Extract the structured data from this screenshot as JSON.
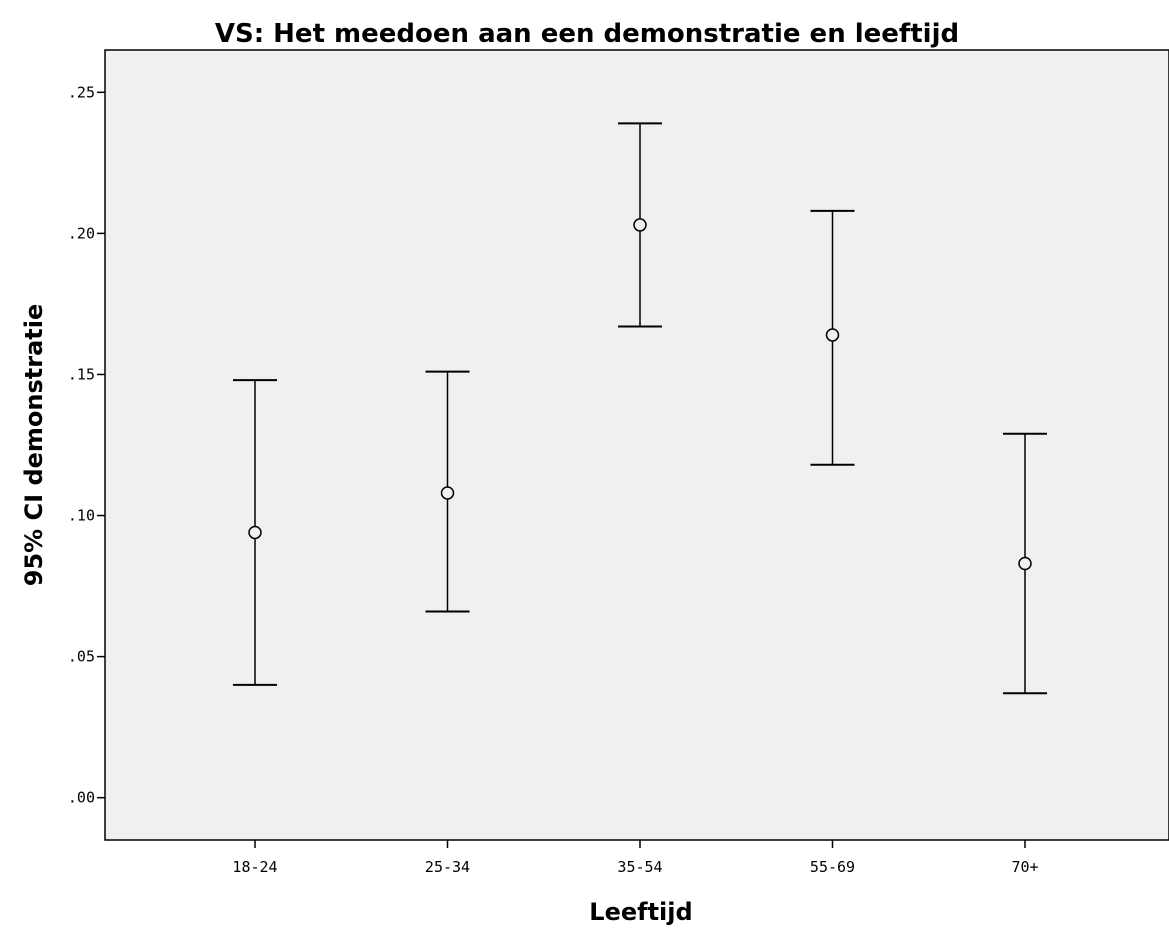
{
  "chart_data": {
    "type": "errorbar",
    "title": "VS: Het meedoen aan een demonstratie en leeftijd",
    "xlabel": "Leeftijd",
    "ylabel": "95% CI demonstratie",
    "categories": [
      "18-24",
      "25-34",
      "35-54",
      "55-69",
      "70+"
    ],
    "means": [
      0.094,
      0.108,
      0.203,
      0.164,
      0.083
    ],
    "ci_lower": [
      0.04,
      0.066,
      0.167,
      0.118,
      0.037
    ],
    "ci_upper": [
      0.148,
      0.151,
      0.239,
      0.208,
      0.129
    ],
    "y_ticks": [
      0.0,
      0.05,
      0.1,
      0.15,
      0.2,
      0.25
    ],
    "y_tick_labels": [
      ".00",
      ".05",
      ".10",
      ".15",
      ".20",
      ".25"
    ],
    "ylim": [
      -0.015,
      0.265
    ],
    "grid": false,
    "colors": {
      "plot_background": "#f0f0f0",
      "marker": "#000000",
      "errorbar": "#000000"
    }
  }
}
